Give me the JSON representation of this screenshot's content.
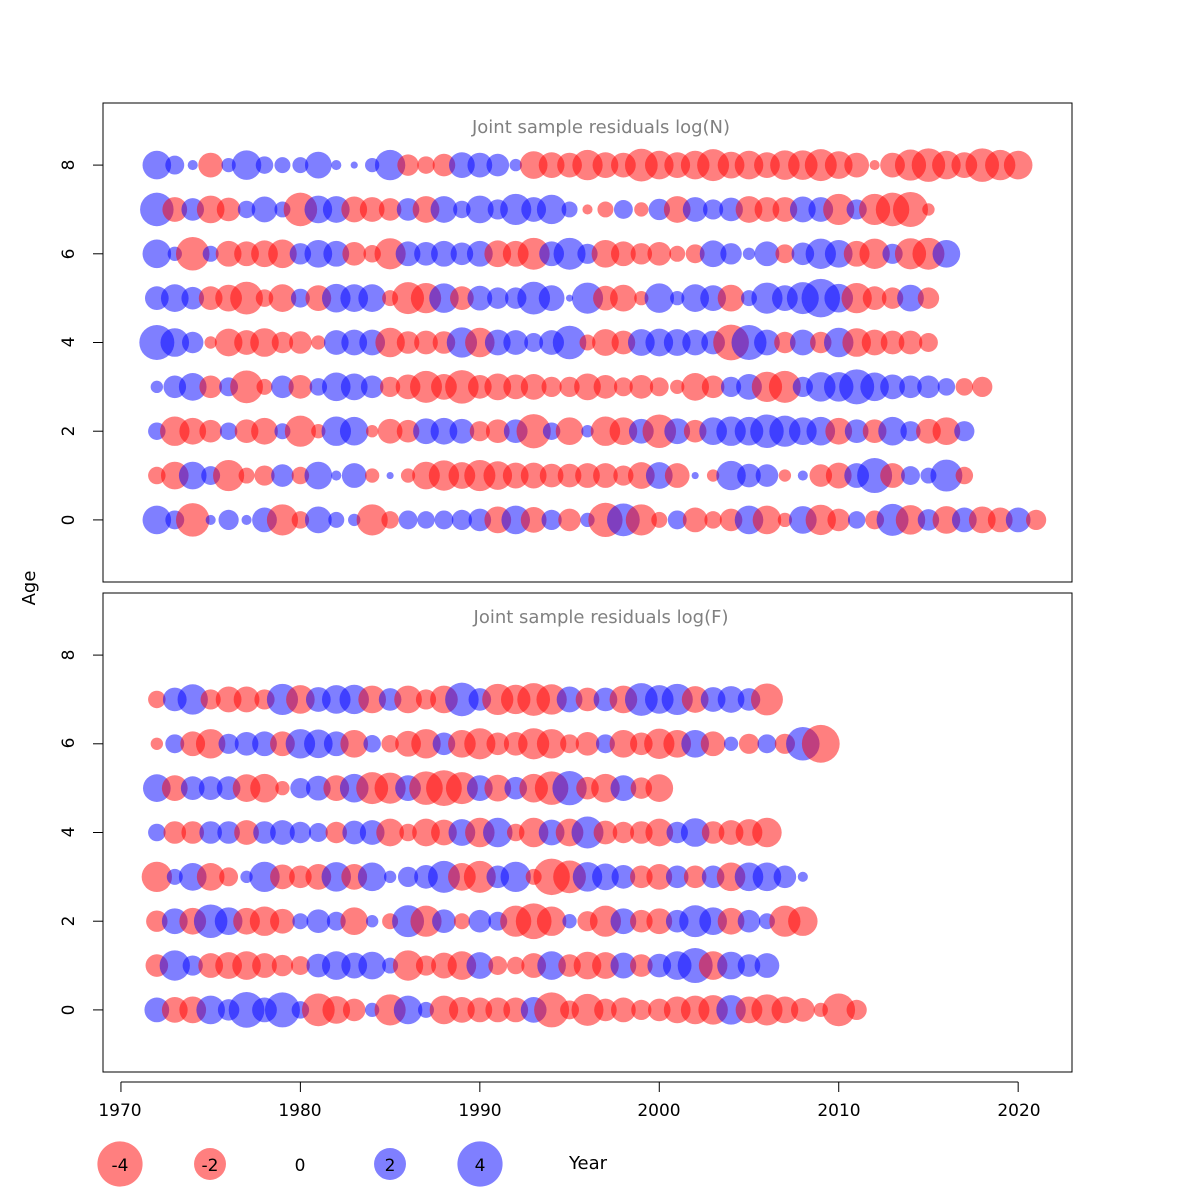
{
  "figure": {
    "ylabel": "Age",
    "xlabel": "Year",
    "colors": {
      "negative": "#ff0000",
      "positive": "#0000ff",
      "frame": "#000000",
      "title": "#808080"
    },
    "bubble_opacity": 0.5
  },
  "legend": {
    "items": [
      {
        "label": "-4",
        "value": -4
      },
      {
        "label": "-2",
        "value": -2
      },
      {
        "label": "0",
        "value": 0
      },
      {
        "label": "2",
        "value": 2
      },
      {
        "label": "4",
        "value": 4
      }
    ]
  },
  "chart_data": [
    {
      "type": "scatter",
      "title": "Joint sample residuals log(N)",
      "ylabel": "Age",
      "xlim": [
        1969,
        2023
      ],
      "ylim": [
        -1.4,
        9.4
      ],
      "yticks": [
        0,
        2,
        4,
        6,
        8
      ],
      "years_start": 1972,
      "ages": [
        0,
        1,
        2,
        3,
        4,
        5,
        6,
        7,
        8
      ],
      "residuals_by_age": {
        "0": [
          1.6,
          0.7,
          -2.2,
          0.2,
          0.8,
          0.2,
          1.2,
          -1.9,
          -0.6,
          1.4,
          0.5,
          0.3,
          -1.9,
          -0.6,
          0.7,
          0.6,
          0.7,
          0.8,
          1.0,
          -1.4,
          1.6,
          -1.3,
          0.8,
          -1.0,
          0.4,
          -2.3,
          2.1,
          -1.9,
          -0.5,
          0.7,
          -1.2,
          -0.6,
          -1.0,
          1.6,
          -1.6,
          -0.4,
          1.5,
          -1.8,
          -1.0,
          0.6,
          -0.7,
          2.0,
          -1.7,
          0.9,
          -1.5,
          1.2,
          -1.4,
          -1.2,
          1.2,
          -0.8
        ],
        "1": [
          -0.6,
          -1.5,
          1.5,
          0.7,
          -1.9,
          -0.5,
          -0.8,
          1.0,
          -0.6,
          1.5,
          0.2,
          1.2,
          -0.4,
          0.1,
          -0.4,
          -1.5,
          -1.8,
          -1.4,
          -1.9,
          -1.6,
          -1.3,
          -1.3,
          -1.1,
          -1.1,
          -1.2,
          -1.2,
          -0.8,
          -1.4,
          1.4,
          -1.2,
          0.1,
          -0.3,
          1.7,
          1.1,
          1.0,
          -0.3,
          0.2,
          -1.0,
          -1.3,
          1.2,
          2.4,
          -1.2,
          0.7,
          0.5,
          2.0,
          -0.6
        ],
        "2": [
          0.6,
          -1.7,
          -1.4,
          -1.0,
          0.6,
          -1.1,
          -1.4,
          0.5,
          -1.9,
          -0.4,
          1.7,
          1.6,
          -0.3,
          -1.2,
          -1.0,
          1.3,
          1.4,
          1.2,
          -0.8,
          -1.1,
          1.1,
          -2.3,
          0.6,
          -1.5,
          0.3,
          -1.7,
          -1.5,
          1.2,
          -2.2,
          1.3,
          -1.0,
          1.5,
          1.7,
          1.6,
          2.2,
          1.9,
          1.5,
          1.6,
          -1.4,
          1.1,
          -1.1,
          1.6,
          0.8,
          -1.2,
          -1.5,
          0.8
        ],
        "3": [
          0.3,
          1.0,
          1.5,
          -1.0,
          0.7,
          -2.1,
          -0.5,
          1.0,
          -1.1,
          0.6,
          1.6,
          1.4,
          1.0,
          -0.8,
          -1.2,
          -2.0,
          -1.3,
          -2.2,
          -1.1,
          -1.4,
          -1.2,
          -1.3,
          -0.8,
          -0.8,
          -1.4,
          -1.1,
          -0.7,
          -1.1,
          -0.7,
          -0.4,
          -1.5,
          -1.0,
          0.8,
          1.3,
          -1.8,
          -2.0,
          0.8,
          1.7,
          1.7,
          2.4,
          1.6,
          1.2,
          1.0,
          1.0,
          0.6,
          -0.6,
          -0.8
        ],
        "4": [
          2.4,
          1.6,
          0.9,
          -0.3,
          -1.5,
          -1.2,
          -1.6,
          -0.9,
          -1.0,
          -0.4,
          1.2,
          1.3,
          1.3,
          -1.7,
          -1.0,
          -1.1,
          -1.0,
          1.8,
          -1.7,
          1.3,
          1.2,
          0.7,
          1.2,
          2.2,
          -0.5,
          -1.4,
          -1.1,
          1.4,
          1.5,
          1.4,
          1.3,
          1.1,
          -2.5,
          2.4,
          1.3,
          -0.9,
          1.3,
          -0.9,
          1.7,
          -1.6,
          -1.3,
          -1.1,
          -1.1,
          -0.7
        ],
        "5": [
          1.1,
          1.5,
          1.0,
          -1.1,
          -1.4,
          -2.1,
          -0.6,
          -1.5,
          0.7,
          -1.3,
          1.6,
          1.5,
          1.5,
          -0.5,
          -2.0,
          -1.8,
          1.7,
          -1.1,
          1.2,
          0.9,
          0.9,
          2.1,
          1.3,
          0.1,
          1.9,
          -1.2,
          -1.4,
          -0.4,
          1.7,
          0.4,
          1.5,
          1.3,
          -1.4,
          0.5,
          1.9,
          1.3,
          2.0,
          2.9,
          1.6,
          -1.8,
          -1.1,
          -0.9,
          1.4,
          -0.9
        ],
        "6": [
          1.6,
          0.4,
          -2.2,
          0.5,
          -1.3,
          -1.2,
          -1.4,
          -1.6,
          0.9,
          1.5,
          1.3,
          -1.1,
          -0.6,
          -1.9,
          1.2,
          1.1,
          1.3,
          1.0,
          1.3,
          -1.4,
          -1.3,
          -2.0,
          1.2,
          2.0,
          0.8,
          -1.5,
          -1.2,
          -0.9,
          -1.1,
          -0.5,
          -0.7,
          1.4,
          0.9,
          0.3,
          1.2,
          -0.7,
          1.0,
          1.8,
          1.5,
          -1.3,
          -1.8,
          0.8,
          -1.9,
          -2.0,
          1.5
        ],
        "7": [
          2.2,
          -1.2,
          1.0,
          -1.5,
          -1.1,
          0.6,
          1.3,
          0.5,
          -2.2,
          1.5,
          1.4,
          -1.3,
          -1.2,
          -1.0,
          1.0,
          -1.4,
          1.4,
          0.6,
          1.5,
          0.8,
          1.9,
          1.2,
          1.7,
          0.5,
          -0.2,
          -0.5,
          0.7,
          -0.4,
          0.9,
          -1.4,
          1.2,
          0.8,
          1.1,
          -1.4,
          -1.2,
          -1.2,
          1.3,
          1.2,
          -1.9,
          0.8,
          -1.9,
          -2.2,
          -2.4,
          -0.3
        ],
        "8": [
          1.6,
          0.7,
          0.2,
          -1.2,
          0.4,
          1.7,
          0.6,
          0.5,
          0.5,
          1.4,
          0.2,
          0.1,
          0.4,
          1.8,
          -0.9,
          -0.6,
          -1.0,
          1.3,
          1.2,
          1.0,
          0.3,
          -1.5,
          -1.3,
          -1.2,
          -1.8,
          -1.3,
          -1.2,
          -2.1,
          -1.6,
          -1.3,
          -1.6,
          -2.0,
          -1.4,
          -1.6,
          -1.3,
          -1.7,
          -1.7,
          -2.0,
          -1.5,
          -1.2,
          -0.2,
          -1.2,
          -1.9,
          -2.2,
          -1.6,
          -1.3,
          -2.2,
          -1.8,
          -1.6
        ]
      }
    },
    {
      "type": "scatter",
      "title": "Joint sample residuals log(F)",
      "ylabel": "Age",
      "xlim": [
        1969,
        2023
      ],
      "ylim": [
        -1.4,
        9.4
      ],
      "yticks": [
        0,
        2,
        4,
        6,
        8
      ],
      "years_start": 1972,
      "ages": [
        0,
        1,
        2,
        3,
        4,
        5,
        6,
        7
      ],
      "residuals_by_age": {
        "0": [
          1.2,
          -1.3,
          -1.4,
          1.6,
          0.9,
          2.5,
          1.2,
          2.4,
          0.6,
          -2.1,
          -1.5,
          -1.0,
          0.4,
          -1.9,
          1.6,
          0.5,
          -1.6,
          -1.3,
          -1.2,
          -1.2,
          -1.2,
          1.3,
          -2.4,
          -0.7,
          -2.0,
          -1.0,
          -1.2,
          -0.8,
          -1.0,
          -1.4,
          -1.6,
          -1.7,
          1.7,
          -1.4,
          -1.9,
          -1.4,
          -1.1,
          -0.4,
          -2.1,
          -0.8
        ],
        "1": [
          -1.0,
          1.8,
          0.8,
          -1.2,
          -1.4,
          -1.6,
          -1.2,
          -0.9,
          -0.7,
          1.1,
          1.6,
          1.3,
          1.5,
          0.5,
          -1.8,
          -0.8,
          -1.3,
          -1.6,
          1.4,
          -0.7,
          -0.6,
          -1.2,
          1.6,
          -1.0,
          -1.5,
          -1.4,
          1.3,
          -1.0,
          1.1,
          1.6,
          2.4,
          -1.6,
          1.5,
          1.0,
          1.2
        ],
        "2": [
          -0.9,
          1.3,
          -1.4,
          2.2,
          1.5,
          -1.4,
          -1.7,
          -1.2,
          0.5,
          1.1,
          0.7,
          -1.5,
          0.3,
          -0.5,
          2.0,
          -1.9,
          1.1,
          -0.5,
          1.0,
          0.7,
          -1.9,
          -2.5,
          -1.7,
          0.4,
          -0.8,
          -1.9,
          1.3,
          -1.0,
          -1.3,
          1.0,
          2.0,
          1.5,
          -1.4,
          1.0,
          0.5,
          -1.9,
          -1.7
        ],
        "3": [
          -1.8,
          0.5,
          1.5,
          -1.5,
          -0.7,
          0.3,
          1.8,
          -1.2,
          -1.0,
          -1.3,
          1.7,
          -1.3,
          1.6,
          0.3,
          0.8,
          1.1,
          2.0,
          -1.5,
          -2.0,
          1.0,
          1.8,
          -0.5,
          -2.6,
          -2.1,
          1.7,
          1.4,
          1.1,
          -1.0,
          -1.3,
          1.0,
          -1.0,
          1.0,
          -1.6,
          1.6,
          1.6,
          1.0,
          0.2
        ],
        "4": [
          0.6,
          -1.0,
          -1.0,
          1.0,
          1.0,
          -1.2,
          1.0,
          1.2,
          0.9,
          0.7,
          -0.9,
          1.1,
          1.2,
          -1.5,
          -0.6,
          -1.5,
          -1.3,
          1.4,
          -1.7,
          1.7,
          -0.6,
          -1.7,
          1.3,
          -1.5,
          2.0,
          -1.1,
          -0.9,
          -1.0,
          -1.5,
          0.9,
          1.6,
          -1.0,
          -1.2,
          -1.4,
          -1.7
        ],
        "5": [
          1.5,
          -1.3,
          1.1,
          1.1,
          1.1,
          -1.5,
          -1.6,
          -0.4,
          0.8,
          1.2,
          -1.3,
          1.6,
          -2.0,
          -1.9,
          1.3,
          -2.2,
          -2.5,
          -2.0,
          1.3,
          -1.4,
          1.0,
          -1.6,
          -2.2,
          2.3,
          -1.0,
          -1.6,
          1.3,
          -0.9,
          -1.5
        ],
        "6": [
          -0.3,
          0.7,
          -1.2,
          -1.7,
          0.8,
          1.1,
          1.2,
          -1.2,
          1.7,
          1.6,
          1.2,
          -1.5,
          0.6,
          -0.6,
          -1.3,
          -1.7,
          1.0,
          -1.5,
          -1.9,
          -1.0,
          -1.1,
          -1.9,
          -1.7,
          -0.7,
          -1.1,
          0.7,
          -1.5,
          -1.0,
          -1.8,
          -1.5,
          1.5,
          -1.2,
          0.4,
          -0.8,
          0.7,
          -0.8,
          2.2,
          -2.8
        ],
        "7": [
          -0.6,
          1.1,
          1.8,
          -0.8,
          -1.3,
          -1.3,
          -0.8,
          1.9,
          -1.6,
          1.2,
          1.6,
          1.7,
          -1.5,
          1.0,
          -1.5,
          -0.8,
          -1.5,
          2.2,
          1.0,
          -1.9,
          -1.7,
          -2.1,
          -1.8,
          1.3,
          -1.1,
          1.1,
          -1.5,
          2.1,
          1.6,
          1.9,
          -1.4,
          1.2,
          1.4,
          1.0,
          -2.0
        ]
      }
    }
  ],
  "xaxis": {
    "ticks": [
      1970,
      1980,
      1990,
      2000,
      2010,
      2020
    ]
  }
}
